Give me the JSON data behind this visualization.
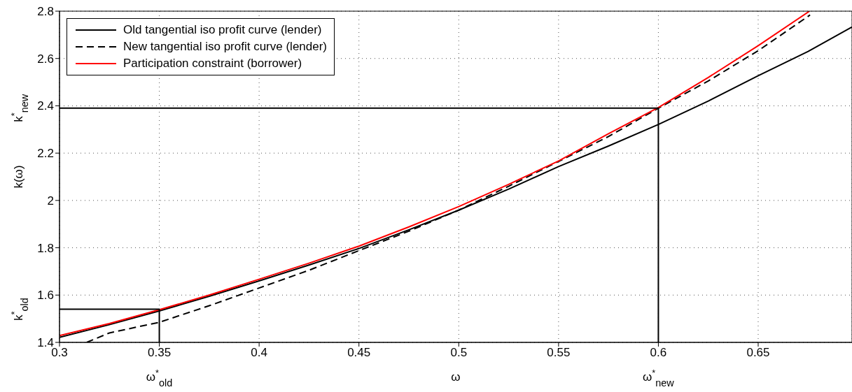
{
  "chart_data": {
    "type": "line",
    "xlabel": "ω",
    "ylabel": "k(ω)",
    "xlim": [
      0.3,
      0.697
    ],
    "xticks": [
      0.3,
      0.35,
      0.4,
      0.45,
      0.5,
      0.55,
      0.6,
      0.65
    ],
    "ylim": [
      1.4,
      2.8
    ],
    "yticks": [
      1.4,
      1.6,
      1.8,
      2,
      2.2,
      2.4,
      2.6,
      2.8
    ],
    "grid": true,
    "legend": "top left",
    "marker": "none",
    "series": [
      {
        "name": "Old tangential iso profit curve (lender)",
        "color": "#000000",
        "line_style": "solid",
        "x": [
          0.3,
          0.325,
          0.35,
          0.375,
          0.4,
          0.425,
          0.45,
          0.475,
          0.5,
          0.525,
          0.55,
          0.575,
          0.6,
          0.625,
          0.65,
          0.675,
          0.697
        ],
        "values": [
          1.421,
          1.475,
          1.533,
          1.595,
          1.66,
          1.727,
          1.797,
          1.876,
          1.959,
          2.048,
          2.143,
          2.23,
          2.321,
          2.42,
          2.527,
          2.63,
          2.733
        ]
      },
      {
        "name": "New tangential iso profit curve (lender)",
        "color": "#000000",
        "line_style": "dashed",
        "x": [
          0.3136,
          0.325,
          0.35,
          0.375,
          0.4,
          0.425,
          0.45,
          0.475,
          0.5,
          0.525,
          0.55,
          0.575,
          0.6,
          0.625,
          0.65,
          0.676
        ],
        "values": [
          1.4,
          1.44,
          1.485,
          1.555,
          1.63,
          1.705,
          1.788,
          1.87,
          1.959,
          2.06,
          2.165,
          2.27,
          2.39,
          2.505,
          2.633,
          2.784
        ]
      },
      {
        "name": "Participation constraint (borrower)",
        "color": "#ff0000",
        "line_style": "solid",
        "x": [
          0.3,
          0.325,
          0.35,
          0.375,
          0.4,
          0.425,
          0.45,
          0.475,
          0.5,
          0.525,
          0.55,
          0.575,
          0.6,
          0.625,
          0.65,
          0.6757
        ],
        "values": [
          1.429,
          1.48,
          1.538,
          1.6,
          1.667,
          1.735,
          1.807,
          1.888,
          1.974,
          2.068,
          2.167,
          2.282,
          2.393,
          2.52,
          2.654,
          2.8
        ]
      },
      {
        "color": "#000000",
        "line_style": "solid",
        "x": [
          0.3,
          0.6,
          0.6
        ],
        "values": [
          2.39,
          2.39,
          1.4
        ]
      },
      {
        "color": "#000000",
        "line_style": "solid",
        "x": [
          0.3,
          0.35,
          0.35
        ],
        "values": [
          1.54,
          1.54,
          1.4
        ]
      }
    ],
    "annotations": [
      {
        "text": "k$^{*}$$_{new}$",
        "x": 0.3,
        "y": 2.39
      },
      {
        "text": "k$^{*}$$_{old}$",
        "x": 0.3,
        "y": 1.54
      },
      {
        "text": "ω$^{*}$$_{old}$",
        "x": 0.35,
        "y": 1.4
      },
      {
        "text": "ω$^{*}$$_{new}$",
        "x": 0.6,
        "y": 1.4
      }
    ]
  }
}
